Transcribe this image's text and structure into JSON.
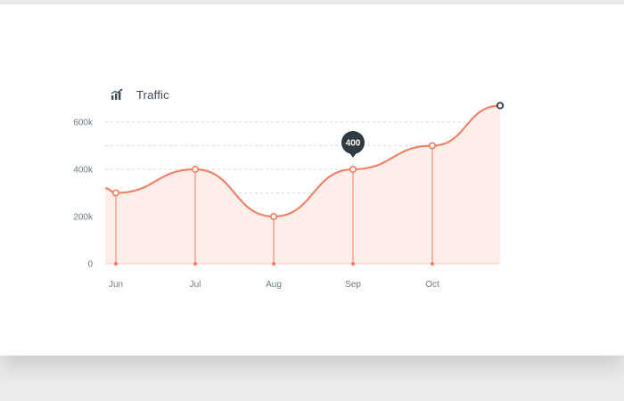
{
  "header": {
    "title": "Traffic",
    "icon": "line-chart-icon"
  },
  "colors": {
    "line": "#f4795e",
    "fill": "#fdeeea",
    "grid": "#d4d8dc",
    "tooltip": "#2f3a43",
    "endpoint": "#2f3a43",
    "text": "#6c7a86"
  },
  "chart_data": {
    "type": "area",
    "title": "Traffic",
    "categories": [
      "Jun",
      "Jul",
      "Aug",
      "Sep",
      "Oct"
    ],
    "y_ticks": [
      "0",
      "200k",
      "400k",
      "600k"
    ],
    "ylim": [
      0,
      600000
    ],
    "points": [
      {
        "label": "",
        "value": 320000
      },
      {
        "label": "Jun",
        "value": 300000
      },
      {
        "label": "Jul",
        "value": 400000
      },
      {
        "label": "Aug",
        "value": 200000
      },
      {
        "label": "Sep",
        "value": 400000
      },
      {
        "label": "Oct",
        "value": 500000
      },
      {
        "label": "",
        "value": 670000
      }
    ],
    "tooltip": {
      "category": "Sep",
      "text": "400"
    },
    "grid": true,
    "legend": "none"
  }
}
